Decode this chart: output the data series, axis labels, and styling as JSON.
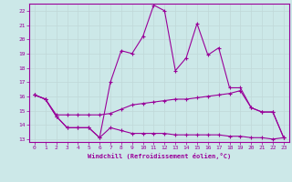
{
  "xlabel": "Windchill (Refroidissement éolien,°C)",
  "background_color": "#cce8e8",
  "grid_color": "#c0d8d8",
  "line_color": "#990099",
  "ylim": [
    12.8,
    22.5
  ],
  "xlim": [
    -0.5,
    23.5
  ],
  "yticks": [
    13,
    14,
    15,
    16,
    17,
    18,
    19,
    20,
    21,
    22
  ],
  "xticks": [
    0,
    1,
    2,
    3,
    4,
    5,
    6,
    7,
    8,
    9,
    10,
    11,
    12,
    13,
    14,
    15,
    16,
    17,
    18,
    19,
    20,
    21,
    22,
    23
  ],
  "series1_x": [
    0,
    1,
    2,
    3,
    4,
    5,
    6,
    7,
    8,
    9,
    10,
    11,
    12,
    13,
    14,
    15,
    16,
    17,
    18,
    19,
    20,
    21,
    22,
    23
  ],
  "series1_y": [
    16.1,
    15.8,
    14.6,
    13.8,
    13.8,
    13.8,
    13.1,
    13.8,
    13.6,
    13.4,
    13.4,
    13.4,
    13.4,
    13.3,
    13.3,
    13.3,
    13.3,
    13.3,
    13.2,
    13.2,
    13.1,
    13.1,
    13.0,
    13.1
  ],
  "series2_x": [
    0,
    1,
    2,
    3,
    4,
    5,
    6,
    7,
    8,
    9,
    10,
    11,
    12,
    13,
    14,
    15,
    16,
    17,
    18,
    19,
    20,
    21,
    22,
    23
  ],
  "series2_y": [
    16.1,
    15.8,
    14.7,
    14.7,
    14.7,
    14.7,
    14.7,
    14.8,
    15.1,
    15.4,
    15.5,
    15.6,
    15.7,
    15.8,
    15.8,
    15.9,
    16.0,
    16.1,
    16.2,
    16.4,
    15.2,
    14.9,
    14.9,
    13.1
  ],
  "series3_x": [
    0,
    1,
    2,
    3,
    4,
    5,
    6,
    7,
    8,
    9,
    10,
    11,
    12,
    13,
    14,
    15,
    16,
    17,
    18,
    19,
    20,
    21,
    22,
    23
  ],
  "series3_y": [
    16.1,
    15.8,
    14.6,
    13.8,
    13.8,
    13.8,
    13.1,
    17.0,
    19.2,
    19.0,
    20.2,
    22.4,
    22.0,
    17.8,
    18.7,
    21.1,
    18.9,
    19.4,
    16.6,
    16.6,
    15.2,
    14.9,
    14.9,
    13.1
  ]
}
